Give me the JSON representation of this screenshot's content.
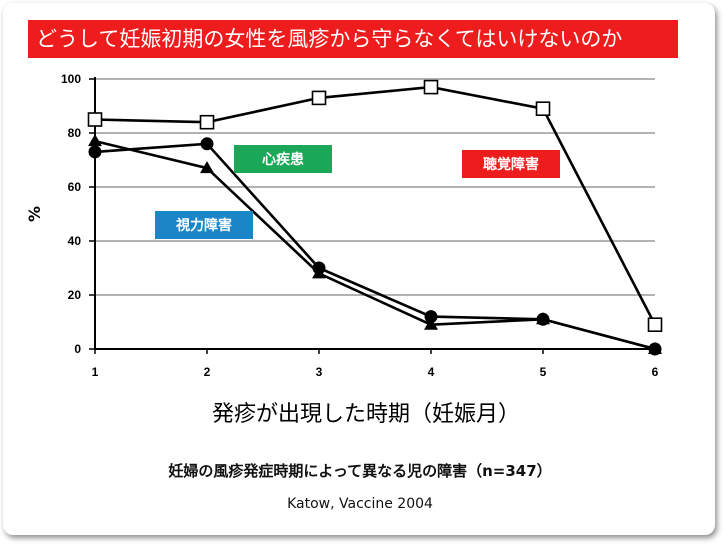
{
  "slide": {
    "title": "どうして妊娠初期の女性を風疹から守らなくてはいけないのか",
    "caption": "妊婦の風疹発症時期によって異なる児の障害（n=347）",
    "source": "Katow,  Vaccine   2004"
  },
  "colors": {
    "banner": "#ee1c1c",
    "hearing": "#ee1c1c",
    "heart": "#1aa858",
    "vision": "#1a86c8"
  },
  "chart_data": {
    "type": "line",
    "x": [
      1,
      2,
      3,
      4,
      5,
      6
    ],
    "xlabel": "発疹が出現した時期（妊娠月）",
    "ylabel": "%",
    "ylim": [
      0,
      100
    ],
    "yticks": [
      0,
      20,
      40,
      60,
      80,
      100
    ],
    "grid": true,
    "series": [
      {
        "name": "聴覚障害",
        "marker": "open-square",
        "values": [
          85,
          84,
          93,
          97,
          89,
          9
        ]
      },
      {
        "name": "心疾患",
        "marker": "filled-circle",
        "values": [
          73,
          76,
          30,
          12,
          11,
          0
        ]
      },
      {
        "name": "視力障害",
        "marker": "filled-triangle",
        "values": [
          77,
          67,
          28,
          9,
          11,
          0
        ]
      }
    ]
  }
}
